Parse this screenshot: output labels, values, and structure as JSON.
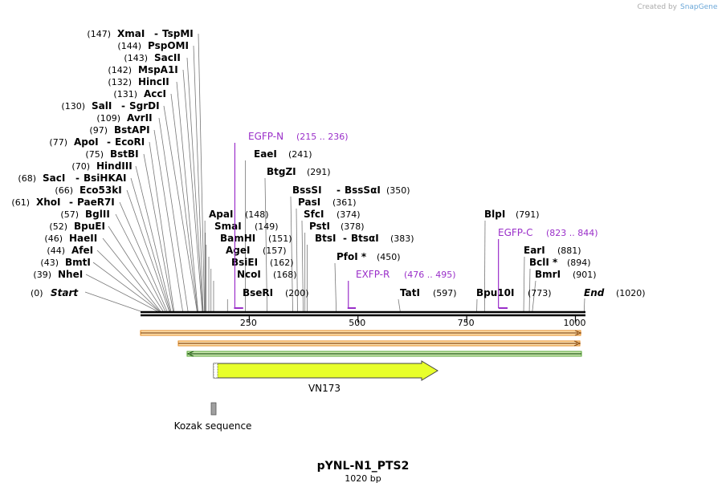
{
  "branding": {
    "created_by": "Created by",
    "product": "SnapGene"
  },
  "map": {
    "name": "pYNL-N1_PTS2",
    "length_label": "1020 bp",
    "length_bp": 1020
  },
  "left_sites": [
    {
      "pos": "(147)",
      "name": "XmaI",
      "alt": "TspMI",
      "bp": 147
    },
    {
      "pos": "(144)",
      "name": "PspOMI",
      "alt": "",
      "bp": 144
    },
    {
      "pos": "(143)",
      "name": "SacII",
      "alt": "",
      "bp": 143
    },
    {
      "pos": "(142)",
      "name": "MspA1I",
      "alt": "",
      "bp": 142
    },
    {
      "pos": "(132)",
      "name": "HincII",
      "alt": "",
      "bp": 132
    },
    {
      "pos": "(131)",
      "name": "AccI",
      "alt": "",
      "bp": 131
    },
    {
      "pos": "(130)",
      "name": "SalI",
      "alt": "SgrDI",
      "bp": 130
    },
    {
      "pos": "(109)",
      "name": "AvrII",
      "alt": "",
      "bp": 109
    },
    {
      "pos": "(97)",
      "name": "BstAPI",
      "alt": "",
      "bp": 97
    },
    {
      "pos": "(77)",
      "name": "ApoI",
      "alt": "EcoRI",
      "bp": 77
    },
    {
      "pos": "(75)",
      "name": "BstBI",
      "alt": "",
      "bp": 75
    },
    {
      "pos": "(70)",
      "name": "HindIII",
      "alt": "",
      "bp": 70
    },
    {
      "pos": "(68)",
      "name": "SacI",
      "alt": "BsiHKAI",
      "bp": 68
    },
    {
      "pos": "(66)",
      "name": "Eco53kI",
      "alt": "",
      "bp": 66
    },
    {
      "pos": "(61)",
      "name": "XhoI",
      "alt": "PaeR7I",
      "bp": 61
    },
    {
      "pos": "(57)",
      "name": "BglII",
      "alt": "",
      "bp": 57
    },
    {
      "pos": "(52)",
      "name": "BpuEI",
      "alt": "",
      "bp": 52
    },
    {
      "pos": "(46)",
      "name": "HaeII",
      "alt": "",
      "bp": 46
    },
    {
      "pos": "(44)",
      "name": "AfeI",
      "alt": "",
      "bp": 44
    },
    {
      "pos": "(43)",
      "name": "BmtI",
      "alt": "",
      "bp": 43
    },
    {
      "pos": "(39)",
      "name": "NheI",
      "alt": "",
      "bp": 39
    }
  ],
  "start": {
    "pos": "(0)",
    "name": "Start"
  },
  "end": {
    "name": "End",
    "pos": "(1020)"
  },
  "mid_sites": [
    {
      "name": "EaeI",
      "pos": "(241)",
      "alt": "",
      "bp": 241
    },
    {
      "name": "BtgZI",
      "pos": "(291)",
      "alt": "",
      "bp": 291
    },
    {
      "name": "BssSI",
      "alt": "BssSαI",
      "pos": "(350)",
      "bp": 350
    },
    {
      "name": "PasI",
      "pos": "(361)",
      "alt": "",
      "bp": 361
    },
    {
      "name": "ApaI",
      "pos": "(148)",
      "alt": "",
      "bp": 148
    },
    {
      "name": "SfcI",
      "pos": "(374)",
      "alt": "",
      "bp": 374
    },
    {
      "name": "SmaI",
      "pos": "(149)",
      "alt": "",
      "bp": 149
    },
    {
      "name": "PstI",
      "pos": "(378)",
      "alt": "",
      "bp": 378
    },
    {
      "name": "BamHI",
      "pos": "(151)",
      "alt": "",
      "bp": 151
    },
    {
      "name": "BtsI",
      "alt": "BtsαI",
      "pos": "(383)",
      "bp": 383
    },
    {
      "name": "AgeI",
      "pos": "(157)",
      "alt": "",
      "bp": 157
    },
    {
      "name": "PfoI *",
      "pos": "(450)",
      "alt": "",
      "bp": 450
    },
    {
      "name": "BsiEI",
      "pos": "(162)",
      "alt": "",
      "bp": 162
    },
    {
      "name": "NcoI",
      "pos": "(168)",
      "alt": "",
      "bp": 168
    },
    {
      "name": "BseRI",
      "pos": "(200)",
      "alt": "",
      "bp": 200
    },
    {
      "name": "TatI",
      "pos": "(597)",
      "alt": "",
      "bp": 597
    }
  ],
  "right_sites": [
    {
      "name": "BlpI",
      "pos": "(791)",
      "alt": "",
      "bp": 791
    },
    {
      "name": "EarI",
      "pos": "(881)",
      "alt": "",
      "bp": 881
    },
    {
      "name": "BclI *",
      "pos": "(894)",
      "alt": "",
      "bp": 894
    },
    {
      "name": "BmrI",
      "pos": "(901)",
      "alt": "",
      "bp": 901
    },
    {
      "name": "Bpu10I",
      "pos": "(773)",
      "alt": "",
      "bp": 773
    }
  ],
  "primers": [
    {
      "name": "EGFP-N",
      "range": "(215 .. 236)",
      "start": 215,
      "end": 236
    },
    {
      "name": "EXFP-R",
      "range": "(476 .. 495)",
      "start": 476,
      "end": 495
    },
    {
      "name": "EGFP-C",
      "range": "(823 .. 844)",
      "start": 823,
      "end": 844
    }
  ],
  "ruler": {
    "ticks": [
      "250",
      "500",
      "750",
      "1000"
    ]
  },
  "features": [
    {
      "name": "VN173",
      "start": 178,
      "end": 697,
      "color": "#e8ff2b"
    },
    {
      "name": "Kozak sequence",
      "start": 166,
      "end": 175,
      "color": "#a0a0a0"
    }
  ],
  "colors": {
    "primer": "#9a2fc9",
    "orf_orange": "#e5891f",
    "orf_green": "#55a532",
    "feature": "#e8ff2b",
    "kozak": "#a0a0a0"
  }
}
